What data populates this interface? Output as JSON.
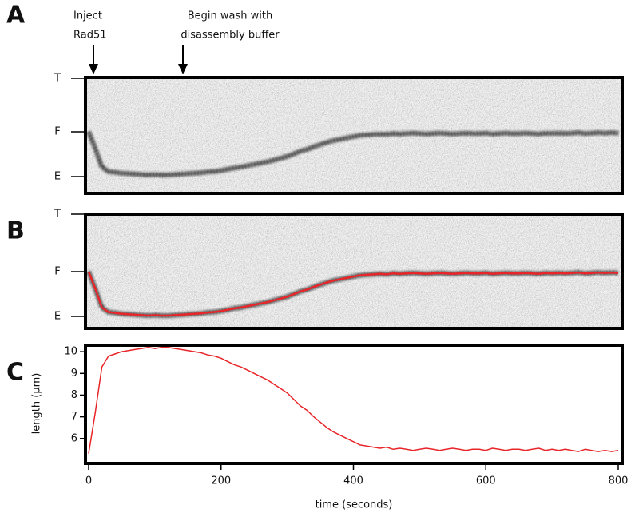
{
  "panel_labels": [
    "A",
    "B",
    "C"
  ],
  "annotations": {
    "inject": [
      "Inject",
      "Rad51"
    ],
    "wash": [
      "Begin wash with",
      "disassembly buffer"
    ]
  },
  "kymograph_labels": [
    "T",
    "F",
    "E"
  ],
  "chart_data": {
    "type": "line",
    "xlabel": "time (seconds)",
    "ylabel": "length (µm)",
    "xlim": [
      0,
      800
    ],
    "ylim": [
      4.85,
      10.3
    ],
    "xticks": [
      0,
      200,
      400,
      600,
      800
    ],
    "yticks": [
      6,
      7,
      8,
      9,
      10
    ],
    "x": [
      0,
      10,
      20,
      30,
      40,
      50,
      60,
      70,
      80,
      90,
      100,
      110,
      120,
      130,
      140,
      150,
      160,
      170,
      180,
      190,
      200,
      210,
      220,
      230,
      240,
      250,
      260,
      270,
      280,
      290,
      300,
      310,
      320,
      330,
      340,
      350,
      360,
      370,
      380,
      390,
      400,
      410,
      420,
      430,
      440,
      450,
      460,
      470,
      480,
      490,
      500,
      510,
      520,
      530,
      540,
      550,
      560,
      570,
      580,
      590,
      600,
      610,
      620,
      630,
      640,
      650,
      660,
      670,
      680,
      690,
      700,
      710,
      720,
      730,
      740,
      750,
      760,
      770,
      780,
      790,
      800
    ],
    "series": [
      {
        "color": "#e8262a",
        "values": [
          5.3,
          7.2,
          9.3,
          9.8,
          9.9,
          10.0,
          10.05,
          10.1,
          10.15,
          10.2,
          10.15,
          10.2,
          10.2,
          10.15,
          10.1,
          10.05,
          10.0,
          9.95,
          9.85,
          9.8,
          9.7,
          9.55,
          9.4,
          9.3,
          9.15,
          9.0,
          8.85,
          8.7,
          8.5,
          8.3,
          8.1,
          7.8,
          7.5,
          7.3,
          7.0,
          6.75,
          6.5,
          6.3,
          6.15,
          6.0,
          5.85,
          5.7,
          5.65,
          5.6,
          5.55,
          5.6,
          5.5,
          5.55,
          5.5,
          5.45,
          5.5,
          5.55,
          5.5,
          5.45,
          5.5,
          5.55,
          5.5,
          5.45,
          5.5,
          5.5,
          5.45,
          5.55,
          5.5,
          5.45,
          5.5,
          5.5,
          5.45,
          5.5,
          5.55,
          5.45,
          5.5,
          5.45,
          5.5,
          5.45,
          5.4,
          5.5,
          5.45,
          5.4,
          5.45,
          5.4,
          5.45
        ]
      }
    ]
  }
}
